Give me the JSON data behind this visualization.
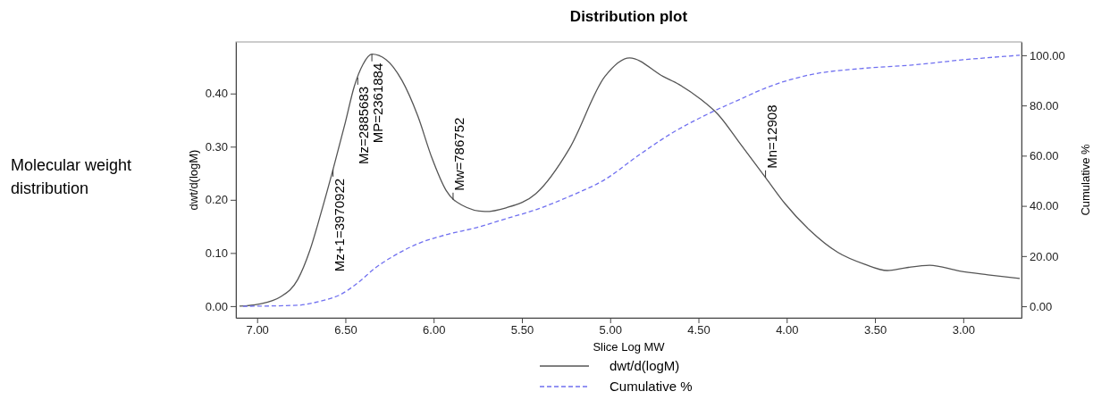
{
  "chart_data": {
    "type": "line",
    "title": "Distribution plot",
    "xlabel": "Slice Log MW",
    "ylabel": "dwt/d(logM)",
    "y2label": "Cumulative %",
    "xlim": [
      7.12,
      2.67
    ],
    "ylim": [
      -0.022,
      0.497
    ],
    "y2lim": [
      -4.6,
      105.3
    ],
    "xticks": [
      {
        "value": 7,
        "label": "7.00"
      },
      {
        "value": 6.5,
        "label": "6.50"
      },
      {
        "value": 6,
        "label": "6.00"
      },
      {
        "value": 5.5,
        "label": "5.50"
      },
      {
        "value": 5,
        "label": "5.00"
      },
      {
        "value": 4.5,
        "label": "4.50"
      },
      {
        "value": 4,
        "label": "4.00"
      },
      {
        "value": 3.5,
        "label": "3.50"
      },
      {
        "value": 3,
        "label": "3.00"
      }
    ],
    "yticks": [
      {
        "value": 0,
        "label": "0.00"
      },
      {
        "value": 0.1,
        "label": "0.10"
      },
      {
        "value": 0.2,
        "label": "0.20"
      },
      {
        "value": 0.3,
        "label": "0.30"
      },
      {
        "value": 0.4,
        "label": "0.40"
      }
    ],
    "y2ticks": [
      {
        "value": 0,
        "label": "0.00"
      },
      {
        "value": 20,
        "label": "20.00"
      },
      {
        "value": 40,
        "label": "40.00"
      },
      {
        "value": 60,
        "label": "60.00"
      },
      {
        "value": 80,
        "label": "80.00"
      },
      {
        "value": 100,
        "label": "100.00"
      }
    ],
    "grid": false,
    "legend": "bottom",
    "marker": "none",
    "series": [
      {
        "name": "dwt/d(logM)",
        "color": "#555555",
        "line_style": "solid",
        "x": [
          7.1,
          6.99,
          6.87,
          6.77,
          6.7,
          6.64,
          6.57,
          6.5,
          6.45,
          6.4,
          6.35,
          6.27,
          6.18,
          6.09,
          6.01,
          5.93,
          5.84,
          5.71,
          5.59,
          5.42,
          5.23,
          5.03,
          4.89,
          4.7,
          4.61,
          4.49,
          4.39,
          4.26,
          4.12,
          4.01,
          3.87,
          3.71,
          3.56,
          3.43,
          3.33,
          3.19,
          3.02,
          2.86,
          2.68
        ],
        "values": [
          0.0,
          0.004,
          0.017,
          0.05,
          0.106,
          0.173,
          0.257,
          0.346,
          0.413,
          0.455,
          0.474,
          0.464,
          0.425,
          0.358,
          0.279,
          0.218,
          0.19,
          0.178,
          0.185,
          0.212,
          0.297,
          0.432,
          0.467,
          0.432,
          0.417,
          0.39,
          0.361,
          0.304,
          0.242,
          0.193,
          0.143,
          0.101,
          0.079,
          0.067,
          0.072,
          0.077,
          0.066,
          0.059,
          0.052
        ]
      },
      {
        "name": "Cumulative %",
        "color": "#7070f0",
        "line_style": "dashed",
        "axis": "y2",
        "x": [
          7.08,
          6.77,
          6.64,
          6.53,
          6.43,
          6.33,
          6.23,
          6.09,
          5.93,
          5.76,
          5.59,
          5.42,
          5.23,
          5.03,
          4.84,
          4.65,
          4.45,
          4.26,
          4.1,
          3.87,
          3.58,
          3.29,
          3.0,
          2.68
        ],
        "values": [
          0,
          0.4,
          2.1,
          4.6,
          9.3,
          15.3,
          19.9,
          24.9,
          28.5,
          31.3,
          34.9,
          38.5,
          43.8,
          50.5,
          60.1,
          69.0,
          76.5,
          82.6,
          87.5,
          92.2,
          94.7,
          96.1,
          98.2,
          100
        ]
      }
    ],
    "annotations": [
      "Molecular weight distribution",
      {
        "text": "Mz+1=3970922",
        "x": 6.57,
        "y": 0.257
      },
      {
        "text": "Mz=2885683",
        "x": 6.43,
        "y": 0.43
      },
      {
        "text": "MP=2361884",
        "x": 6.35,
        "y": 0.474
      },
      {
        "text": "Mw=786752",
        "x": 5.89,
        "y": 0.2
      },
      {
        "text": "Mn=12908",
        "x": 4.12,
        "y": 0.242
      }
    ]
  }
}
